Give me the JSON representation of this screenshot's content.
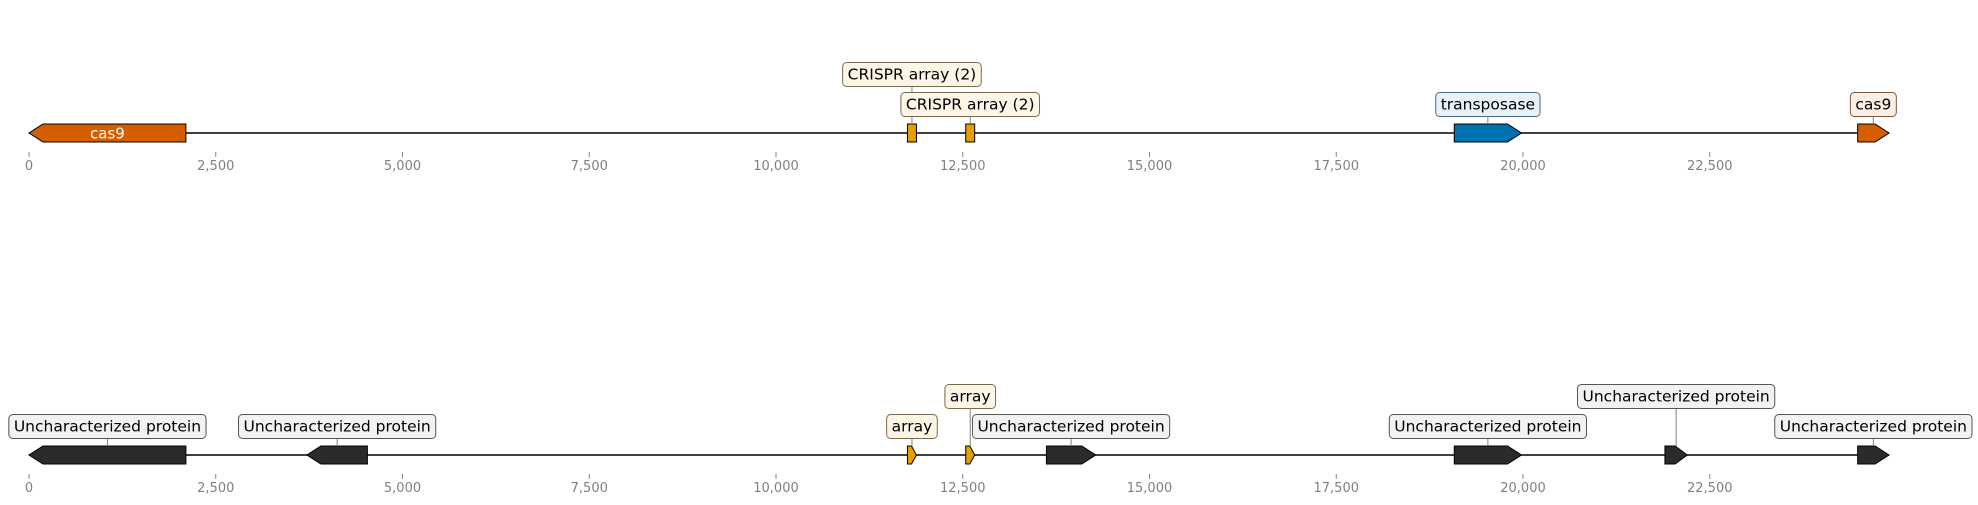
{
  "colors": {
    "cas9": "#d55e00",
    "crispr": "#e69f00",
    "transposase": "#0072b2",
    "uncharacterized": "#2b2b2b",
    "array": "#e69f00",
    "axis": "#808080",
    "line": "#000000"
  },
  "axis": {
    "min": 0,
    "max": 25000,
    "ticks": [
      0,
      2500,
      5000,
      7500,
      10000,
      12500,
      15000,
      17500,
      20000,
      22500
    ],
    "tick_labels": [
      "0",
      "2,500",
      "5,000",
      "7,500",
      "10,000",
      "12,500",
      "15,000",
      "17,500",
      "20,000",
      "22,500"
    ]
  },
  "tracks": [
    {
      "name": "track-1",
      "sequence_end": 24900,
      "features": [
        {
          "label": "cas9",
          "start": 0,
          "end": 2100,
          "strand": -1,
          "color": "#d55e00",
          "label_pos": "inside",
          "label_level": 0,
          "box_fill": "#ffffff",
          "box_stroke": "#000000"
        },
        {
          "label": "CRISPR array (2)",
          "start": 11760,
          "end": 11880,
          "strand": 0,
          "color": "#e69f00",
          "label_pos": "above",
          "label_level": 2,
          "box_fill": "#fdf6e6",
          "box_stroke": "#7a6a50"
        },
        {
          "label": "CRISPR array (2)",
          "start": 12540,
          "end": 12660,
          "strand": 0,
          "color": "#e69f00",
          "label_pos": "above",
          "label_level": 1,
          "box_fill": "#fdf6e6",
          "box_stroke": "#7a6a50"
        },
        {
          "label": "transposase",
          "start": 19080,
          "end": 19980,
          "strand": 1,
          "color": "#0072b2",
          "label_pos": "above",
          "label_level": 1,
          "box_fill": "#e8f1f8",
          "box_stroke": "#4a6a80"
        },
        {
          "label": "cas9",
          "start": 24480,
          "end": 24900,
          "strand": 1,
          "color": "#d55e00",
          "label_pos": "above",
          "label_level": 1,
          "box_fill": "#fbefe6",
          "box_stroke": "#7a5a45"
        }
      ]
    },
    {
      "name": "track-2",
      "sequence_end": 24900,
      "features": [
        {
          "label": "Uncharacterized protein",
          "start": 0,
          "end": 2100,
          "strand": -1,
          "color": "#2b2b2b",
          "label_pos": "above",
          "label_level": 1,
          "box_fill": "#f2f2f2",
          "box_stroke": "#555555"
        },
        {
          "label": "Uncharacterized protein",
          "start": 3720,
          "end": 4530,
          "strand": -1,
          "color": "#2b2b2b",
          "label_pos": "above",
          "label_level": 1,
          "box_fill": "#f2f2f2",
          "box_stroke": "#555555"
        },
        {
          "label": "array",
          "start": 11760,
          "end": 11880,
          "strand": 1,
          "color": "#e69f00",
          "label_pos": "above",
          "label_level": 1,
          "box_fill": "#fdf6e6",
          "box_stroke": "#7a6a50"
        },
        {
          "label": "array",
          "start": 12540,
          "end": 12660,
          "strand": 1,
          "color": "#e69f00",
          "label_pos": "above",
          "label_level": 2,
          "box_fill": "#fdf6e6",
          "box_stroke": "#7a6a50"
        },
        {
          "label": "Uncharacterized protein",
          "start": 13620,
          "end": 14280,
          "strand": 1,
          "color": "#2b2b2b",
          "label_pos": "above",
          "label_level": 1,
          "box_fill": "#f2f2f2",
          "box_stroke": "#555555"
        },
        {
          "label": "Uncharacterized protein",
          "start": 19080,
          "end": 19980,
          "strand": 1,
          "color": "#2b2b2b",
          "label_pos": "above",
          "label_level": 1,
          "box_fill": "#f2f2f2",
          "box_stroke": "#555555"
        },
        {
          "label": "Uncharacterized protein",
          "start": 21900,
          "end": 22200,
          "strand": 1,
          "color": "#2b2b2b",
          "label_pos": "above",
          "label_level": 2,
          "box_fill": "#f2f2f2",
          "box_stroke": "#555555"
        },
        {
          "label": "Uncharacterized protein",
          "start": 24480,
          "end": 24900,
          "strand": 1,
          "color": "#2b2b2b",
          "label_pos": "above",
          "label_level": 1,
          "box_fill": "#f2f2f2",
          "box_stroke": "#555555"
        }
      ]
    }
  ]
}
